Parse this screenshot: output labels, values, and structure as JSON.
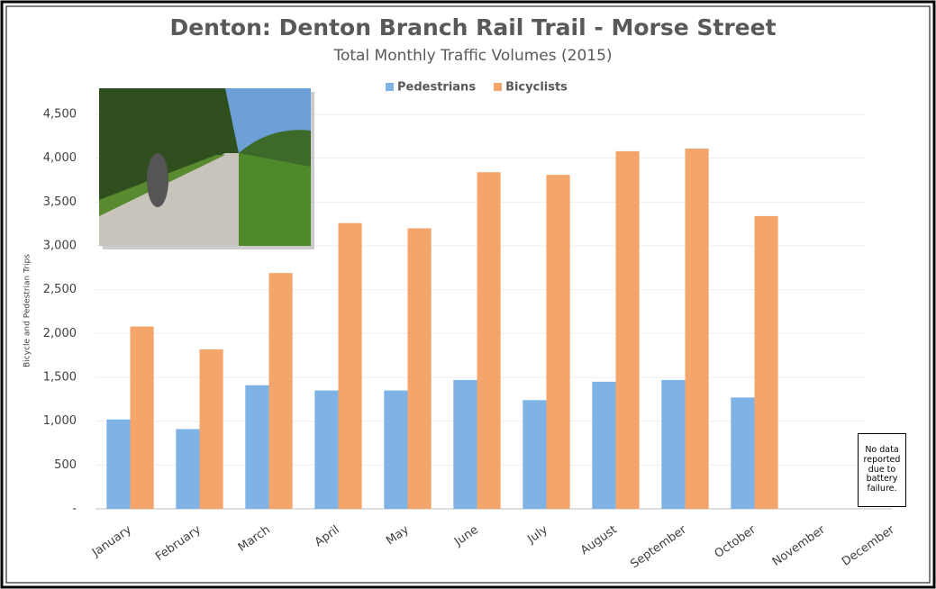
{
  "chart_data": {
    "type": "bar",
    "title": "Denton: Denton Branch Rail Trail - Morse Street",
    "subtitle": "Total Monthly Traffic Volumes (2015)",
    "y_label": "Bicycle and Pedestrian Trips",
    "annotation": "No data reported due to battery failure.",
    "categories": [
      "January",
      "February",
      "March",
      "April",
      "May",
      "June",
      "July",
      "August",
      "September",
      "October",
      "November",
      "December"
    ],
    "series": [
      {
        "name": "Pedestrians",
        "color": "#7fb2e5",
        "values": [
          1020,
          910,
          1410,
          1350,
          1350,
          1470,
          1240,
          1450,
          1470,
          1270,
          null,
          null
        ]
      },
      {
        "name": "Bicyclists",
        "color": "#f4a56b",
        "values": [
          2080,
          1820,
          2690,
          3260,
          3200,
          3840,
          3810,
          4080,
          4110,
          3340,
          null,
          null
        ]
      }
    ],
    "ylim": [
      0,
      4500
    ],
    "yticks": [
      {
        "value": 0,
        "label": "-"
      },
      500,
      {
        "value": 1000,
        "label": "1,000"
      },
      {
        "value": 1500,
        "label": "1,500"
      },
      {
        "value": 2000,
        "label": "2,000"
      },
      {
        "value": 2500,
        "label": "2,500"
      },
      {
        "value": 3000,
        "label": "3,000"
      },
      {
        "value": 3500,
        "label": "3,500"
      },
      {
        "value": 4000,
        "label": "4,000"
      },
      {
        "value": 4500,
        "label": "4,500"
      }
    ],
    "grid": true,
    "legend": "top"
  }
}
